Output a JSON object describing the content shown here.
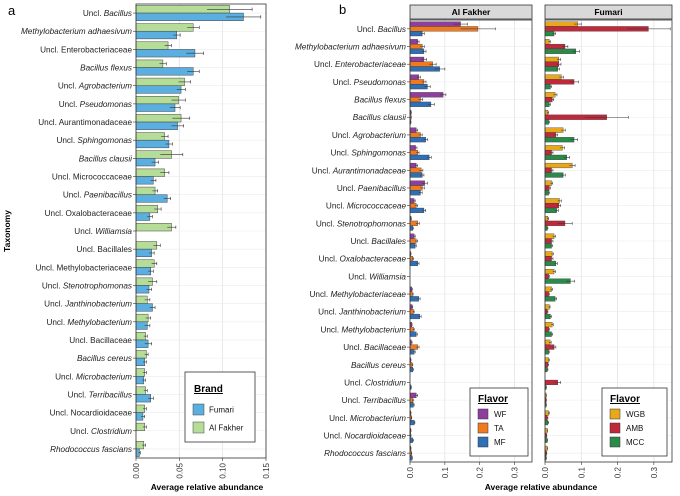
{
  "chart_data": [
    {
      "type": "bar",
      "orientation": "horizontal",
      "panel_label": "a",
      "title": "",
      "xlabel": "Average relative abundance",
      "ylabel": "Taxonomy",
      "xlim": [
        0,
        0.15
      ],
      "xticks": [
        "0.00",
        "0.05",
        "0.10",
        "0.15"
      ],
      "grid": true,
      "legend": {
        "title": "Brand",
        "position": "bottom-right"
      },
      "categories": [
        {
          "label": "Uncl.",
          "taxon": "Bacillus"
        },
        {
          "label": "",
          "taxon": "Methylobacterium adhaesivum"
        },
        {
          "label": "Uncl. Enterobacteriaceae",
          "taxon": ""
        },
        {
          "label": "",
          "taxon": "Bacillus flexus"
        },
        {
          "label": "Uncl.",
          "taxon": "Agrobacterium"
        },
        {
          "label": "Uncl.",
          "taxon": "Pseudomonas"
        },
        {
          "label": "Uncl. Aurantimonadaceae",
          "taxon": ""
        },
        {
          "label": "Uncl.",
          "taxon": "Sphingomonas"
        },
        {
          "label": "",
          "taxon": "Bacillus clausii"
        },
        {
          "label": "Uncl. Micrococcaceae",
          "taxon": ""
        },
        {
          "label": "Uncl.",
          "taxon": "Paenibacillus"
        },
        {
          "label": "Uncl. Oxalobacteraceae",
          "taxon": ""
        },
        {
          "label": "Uncl.",
          "taxon": "Williamsia"
        },
        {
          "label": "Uncl. Bacillales",
          "taxon": ""
        },
        {
          "label": "Uncl. Methylobacteriaceae",
          "taxon": ""
        },
        {
          "label": "Uncl.",
          "taxon": "Stenotrophomonas"
        },
        {
          "label": "Uncl.",
          "taxon": "Janthinobacterium"
        },
        {
          "label": "Uncl.",
          "taxon": "Methylobacterium"
        },
        {
          "label": "Uncl. Bacillaceae",
          "taxon": ""
        },
        {
          "label": "",
          "taxon": "Bacillus cereus"
        },
        {
          "label": "Uncl.",
          "taxon": "Microbacterium"
        },
        {
          "label": "Uncl.",
          "taxon": "Terribacillus"
        },
        {
          "label": "Uncl. Nocardioidaceae",
          "taxon": ""
        },
        {
          "label": "Uncl.",
          "taxon": "Clostridium"
        },
        {
          "label": "",
          "taxon": "Rhodococcus fascians"
        }
      ],
      "series": [
        {
          "name": "Fumari",
          "color": "#5aafe0",
          "values": [
            0.124,
            0.047,
            0.068,
            0.066,
            0.052,
            0.045,
            0.048,
            0.038,
            0.022,
            0.02,
            0.036,
            0.016,
            0.0,
            0.018,
            0.017,
            0.015,
            0.019,
            0.013,
            0.014,
            0.01,
            0.009,
            0.017,
            0.008,
            0.0,
            0.004
          ],
          "errors": [
            0.02,
            0.004,
            0.01,
            0.007,
            0.005,
            0.006,
            0.007,
            0.004,
            0.004,
            0.003,
            0.004,
            0.003,
            0.0,
            0.003,
            0.003,
            0.003,
            0.003,
            0.003,
            0.004,
            0.002,
            0.002,
            0.003,
            0.002,
            0.0,
            0.001
          ]
        },
        {
          "name": "Al Fakher",
          "color": "#b5dd97",
          "values": [
            0.108,
            0.066,
            0.037,
            0.031,
            0.056,
            0.049,
            0.052,
            0.033,
            0.041,
            0.033,
            0.022,
            0.025,
            0.041,
            0.024,
            0.021,
            0.019,
            0.013,
            0.014,
            0.011,
            0.012,
            0.01,
            0.011,
            0.01,
            0.01,
            0.009
          ],
          "errors": [
            0.026,
            0.007,
            0.004,
            0.004,
            0.007,
            0.008,
            0.01,
            0.004,
            0.013,
            0.005,
            0.003,
            0.004,
            0.005,
            0.004,
            0.003,
            0.005,
            0.003,
            0.003,
            0.002,
            0.002,
            0.002,
            0.002,
            0.002,
            0.002,
            0.002
          ]
        }
      ]
    },
    {
      "type": "bar",
      "orientation": "horizontal",
      "panel_label": "b",
      "xlabel": "Average relative abundance",
      "xlim": [
        0,
        0.35
      ],
      "xticks": [
        "0.0",
        "0.1",
        "0.2",
        "0.3"
      ],
      "grid": true,
      "categories": [
        {
          "label": "Uncl.",
          "taxon": "Bacillus"
        },
        {
          "label": "",
          "taxon": "Methylobacterium adhaesivum"
        },
        {
          "label": "Uncl.",
          "taxon": "Enterobacteriaceae"
        },
        {
          "label": "Uncl.",
          "taxon": "Pseudomonas"
        },
        {
          "label": "",
          "taxon": "Bacillus flexus"
        },
        {
          "label": "",
          "taxon": "Bacillus clausii"
        },
        {
          "label": "Uncl.",
          "taxon": "Agrobacterium"
        },
        {
          "label": "Uncl.",
          "taxon": "Sphingomonas"
        },
        {
          "label": "Uncl.",
          "taxon": "Aurantimonadaceae"
        },
        {
          "label": "Uncl.",
          "taxon": "Paenibacillus"
        },
        {
          "label": "Uncl.",
          "taxon": "Micrococcaceae"
        },
        {
          "label": "Uncl.",
          "taxon": "Stenotrophomonas"
        },
        {
          "label": "Uncl.",
          "taxon": "Bacillales"
        },
        {
          "label": "Uncl.",
          "taxon": "Oxalobacteraceae"
        },
        {
          "label": "Uncl.",
          "taxon": "Williamsia"
        },
        {
          "label": "Uncl.",
          "taxon": "Methylobacteriaceae"
        },
        {
          "label": "Uncl.",
          "taxon": "Janthinobacterium"
        },
        {
          "label": "Uncl.",
          "taxon": "Methylobacterium"
        },
        {
          "label": "Uncl.",
          "taxon": "Bacillaceae"
        },
        {
          "label": "",
          "taxon": "Bacillus cereus"
        },
        {
          "label": "Uncl.",
          "taxon": "Clostridium"
        },
        {
          "label": "Uncl.",
          "taxon": "Terribacillus"
        },
        {
          "label": "Uncl.",
          "taxon": "Microbacterium"
        },
        {
          "label": "Uncl.",
          "taxon": "Nocardioidaceae"
        },
        {
          "label": "",
          "taxon": "Rhodococcus fascians"
        }
      ],
      "facets": [
        {
          "title": "Al Fakher",
          "legend": {
            "title": "Flavor",
            "position": "bottom-right"
          },
          "series": [
            {
              "name": "WF",
              "color": "#8e3f9e",
              "values": [
                0.145,
                0.022,
                0.04,
                0.025,
                0.095,
                0.003,
                0.018,
                0.016,
                0.018,
                0.042,
                0.012,
                0.003,
                0.012,
                0.002,
                0.0,
                0.005,
                0.006,
                0.005,
                0.004,
                0.002,
                0.0,
                0.018,
                0.002,
                0.002,
                0.002
              ],
              "errors": [
                0.02,
                0.004,
                0.008,
                0.005,
                0.008,
                0.001,
                0.004,
                0.004,
                0.004,
                0.008,
                0.003,
                0.001,
                0.003,
                0.001,
                0.0,
                0.002,
                0.002,
                0.001,
                0.002,
                0.001,
                0.0,
                0.004,
                0.001,
                0.001,
                0.001
              ]
            },
            {
              "name": "TA",
              "color": "#ef7a20",
              "values": [
                0.195,
                0.035,
                0.065,
                0.04,
                0.03,
                0.003,
                0.03,
                0.022,
                0.032,
                0.035,
                0.018,
                0.022,
                0.018,
                0.008,
                0.0,
                0.007,
                0.01,
                0.01,
                0.022,
                0.006,
                0.0,
                0.008,
                0.004,
                0.002,
                0.004
              ],
              "errors": [
                0.05,
                0.006,
                0.01,
                0.006,
                0.006,
                0.001,
                0.005,
                0.004,
                0.005,
                0.006,
                0.004,
                0.005,
                0.004,
                0.002,
                0.0,
                0.002,
                0.002,
                0.002,
                0.004,
                0.002,
                0.0,
                0.002,
                0.001,
                0.001,
                0.001
              ]
            },
            {
              "name": "MF",
              "color": "#2e6fb5",
              "values": [
                0.035,
                0.04,
                0.085,
                0.05,
                0.06,
                0.002,
                0.045,
                0.055,
                0.035,
                0.03,
                0.04,
                0.008,
                0.015,
                0.022,
                0.0,
                0.025,
                0.028,
                0.018,
                0.012,
                0.008,
                0.003,
                0.01,
                0.012,
                0.008,
                0.006
              ],
              "errors": [
                0.006,
                0.006,
                0.015,
                0.008,
                0.01,
                0.001,
                0.006,
                0.006,
                0.005,
                0.005,
                0.005,
                0.002,
                0.003,
                0.004,
                0.0,
                0.004,
                0.004,
                0.003,
                0.003,
                0.002,
                0.001,
                0.002,
                0.002,
                0.002,
                0.001
              ]
            }
          ]
        },
        {
          "title": "Fumari",
          "legend": {
            "title": "Flavor",
            "position": "bottom-right"
          },
          "series": [
            {
              "name": "WGB",
              "color": "#e8a81c",
              "values": [
                0.09,
                0.012,
                0.038,
                0.045,
                0.028,
                0.008,
                0.05,
                0.048,
                0.075,
                0.018,
                0.04,
                0.008,
                0.025,
                0.02,
                0.025,
                0.018,
                0.012,
                0.02,
                0.014,
                0.01,
                0.0,
                0.003,
                0.01,
                0.006,
                0.006
              ],
              "errors": [
                0.01,
                0.003,
                0.005,
                0.006,
                0.005,
                0.002,
                0.006,
                0.006,
                0.008,
                0.003,
                0.005,
                0.002,
                0.004,
                0.003,
                0.004,
                0.003,
                0.002,
                0.003,
                0.003,
                0.002,
                0.0,
                0.001,
                0.002,
                0.001,
                0.001
              ]
            },
            {
              "name": "AMB",
              "color": "#c0283c",
              "values": [
                0.285,
                0.055,
                0.038,
                0.08,
                0.02,
                0.17,
                0.03,
                0.018,
                0.018,
                0.012,
                0.038,
                0.055,
                0.018,
                0.018,
                0.01,
                0.01,
                0.006,
                0.01,
                0.025,
                0.008,
                0.035,
                0.003,
                0.006,
                0.004,
                0.004
              ],
              "errors": [
                0.06,
                0.008,
                0.006,
                0.012,
                0.004,
                0.06,
                0.005,
                0.004,
                0.004,
                0.003,
                0.005,
                0.02,
                0.004,
                0.004,
                0.002,
                0.002,
                0.002,
                0.002,
                0.005,
                0.002,
                0.008,
                0.001,
                0.002,
                0.001,
                0.001
              ]
            },
            {
              "name": "MCC",
              "color": "#2a8a4a",
              "values": [
                0.025,
                0.085,
                0.035,
                0.015,
                0.012,
                0.01,
                0.08,
                0.06,
                0.05,
                0.01,
                0.032,
                0.006,
                0.018,
                0.03,
                0.07,
                0.028,
                0.015,
                0.018,
                0.01,
                0.006,
                0.003,
                0.003,
                0.008,
                0.006,
                0.003
              ],
              "errors": [
                0.004,
                0.01,
                0.005,
                0.003,
                0.003,
                0.002,
                0.01,
                0.008,
                0.006,
                0.002,
                0.005,
                0.002,
                0.003,
                0.004,
                0.012,
                0.004,
                0.003,
                0.003,
                0.002,
                0.002,
                0.001,
                0.001,
                0.002,
                0.001,
                0.001
              ]
            }
          ]
        }
      ]
    }
  ]
}
